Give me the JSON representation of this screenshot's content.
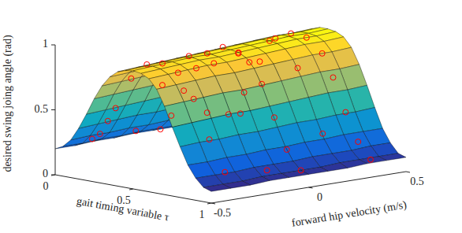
{
  "chart_data": {
    "type": "surface",
    "xlabel": "gait timing variable τ",
    "ylabel": "forward hip velocity (m/s)",
    "zlabel": "desired swing joing angle (rad)",
    "xlim": [
      0,
      1
    ],
    "ylim": [
      -0.5,
      0.5
    ],
    "zlim": [
      0,
      1
    ],
    "xticks": [
      0,
      0.5,
      1
    ],
    "yticks": [
      -0.5,
      0,
      0.5
    ],
    "zticks": [
      0,
      0.5,
      1
    ],
    "grid": false,
    "surface": {
      "x": [
        0,
        0.05,
        0.1,
        0.15,
        0.2,
        0.25,
        0.3,
        0.35,
        0.4,
        0.45,
        0.5,
        0.55,
        0.6,
        0.65,
        0.7,
        0.75,
        0.8,
        0.85,
        0.9,
        0.95,
        1
      ],
      "y": [
        -0.5,
        -0.4,
        -0.3,
        -0.2,
        -0.1,
        0,
        0.1,
        0.2,
        0.3,
        0.4,
        0.5
      ],
      "z": [
        [
          0.2,
          0.23,
          0.29,
          0.39,
          0.51,
          0.64,
          0.75,
          0.83,
          0.88,
          0.9,
          0.91,
          0.9,
          0.87,
          0.8,
          0.68,
          0.53,
          0.39,
          0.26,
          0.17,
          0.11,
          0.09
        ],
        [
          0.2,
          0.23,
          0.3,
          0.4,
          0.52,
          0.65,
          0.76,
          0.84,
          0.89,
          0.91,
          0.92,
          0.91,
          0.88,
          0.81,
          0.69,
          0.54,
          0.4,
          0.26,
          0.17,
          0.11,
          0.09
        ],
        [
          0.21,
          0.24,
          0.3,
          0.41,
          0.53,
          0.66,
          0.77,
          0.85,
          0.9,
          0.92,
          0.93,
          0.92,
          0.89,
          0.82,
          0.7,
          0.55,
          0.4,
          0.27,
          0.17,
          0.11,
          0.09
        ],
        [
          0.21,
          0.24,
          0.31,
          0.42,
          0.54,
          0.67,
          0.78,
          0.86,
          0.91,
          0.93,
          0.94,
          0.93,
          0.9,
          0.83,
          0.71,
          0.56,
          0.41,
          0.27,
          0.18,
          0.12,
          0.1
        ],
        [
          0.22,
          0.25,
          0.31,
          0.42,
          0.55,
          0.68,
          0.79,
          0.87,
          0.92,
          0.94,
          0.94,
          0.93,
          0.9,
          0.83,
          0.71,
          0.56,
          0.41,
          0.28,
          0.18,
          0.12,
          0.1
        ],
        [
          0.22,
          0.25,
          0.32,
          0.43,
          0.56,
          0.69,
          0.8,
          0.88,
          0.93,
          0.95,
          0.95,
          0.94,
          0.91,
          0.84,
          0.72,
          0.57,
          0.42,
          0.28,
          0.18,
          0.12,
          0.1
        ],
        [
          0.22,
          0.25,
          0.32,
          0.44,
          0.57,
          0.7,
          0.81,
          0.89,
          0.94,
          0.96,
          0.96,
          0.95,
          0.92,
          0.85,
          0.73,
          0.58,
          0.43,
          0.29,
          0.19,
          0.12,
          0.1
        ],
        [
          0.23,
          0.26,
          0.33,
          0.45,
          0.58,
          0.71,
          0.82,
          0.9,
          0.95,
          0.97,
          0.97,
          0.96,
          0.93,
          0.86,
          0.74,
          0.59,
          0.43,
          0.29,
          0.19,
          0.13,
          0.1
        ],
        [
          0.23,
          0.26,
          0.33,
          0.45,
          0.59,
          0.72,
          0.83,
          0.91,
          0.96,
          0.98,
          0.98,
          0.97,
          0.94,
          0.87,
          0.75,
          0.6,
          0.44,
          0.3,
          0.19,
          0.13,
          0.11
        ],
        [
          0.24,
          0.27,
          0.34,
          0.46,
          0.6,
          0.73,
          0.84,
          0.92,
          0.96,
          0.98,
          0.98,
          0.97,
          0.94,
          0.87,
          0.75,
          0.6,
          0.44,
          0.3,
          0.2,
          0.13,
          0.11
        ],
        [
          0.24,
          0.27,
          0.34,
          0.46,
          0.6,
          0.73,
          0.84,
          0.92,
          0.97,
          0.99,
          0.99,
          0.98,
          0.95,
          0.88,
          0.76,
          0.61,
          0.45,
          0.3,
          0.2,
          0.13,
          0.11
        ]
      ]
    },
    "points": {
      "marker": "circle",
      "color": "#ff0000",
      "x": [
        0.05,
        0.1,
        0.15,
        0.2,
        0.3,
        0.4,
        0.5,
        0.6,
        0.7,
        0.8,
        0.9,
        0.05,
        0.12,
        0.2,
        0.28,
        0.35,
        0.45,
        0.55,
        0.62,
        0.7,
        0.78,
        0.86,
        0.95,
        0.05,
        0.15,
        0.25,
        0.35,
        0.45,
        0.55,
        0.65,
        0.72,
        0.8,
        0.88,
        0.96,
        0.08,
        0.25,
        0.42,
        0.58,
        0.75,
        0.92,
        0.1,
        0.3,
        0.5,
        0.68,
        0.84
      ],
      "y": [
        -0.35,
        -0.35,
        -0.35,
        -0.35,
        -0.35,
        -0.35,
        -0.35,
        -0.35,
        -0.35,
        -0.35,
        -0.35,
        0,
        0,
        0,
        0,
        0,
        0,
        0,
        0,
        0,
        0,
        0,
        0,
        0.35,
        0.35,
        0.35,
        0.35,
        0.35,
        0.35,
        0.35,
        0.35,
        0.35,
        0.35,
        0.35,
        -0.15,
        -0.15,
        -0.15,
        -0.15,
        -0.15,
        -0.15,
        0.2,
        0.2,
        0.2,
        0.2,
        0.2
      ],
      "z": [
        0.25,
        0.3,
        0.41,
        0.52,
        0.77,
        0.9,
        0.93,
        0.88,
        0.7,
        0.41,
        0.18,
        0.24,
        0.36,
        0.57,
        0.76,
        0.89,
        0.96,
        0.94,
        0.88,
        0.73,
        0.49,
        0.26,
        0.12,
        0.27,
        0.46,
        0.72,
        0.92,
        0.98,
        0.97,
        0.87,
        0.7,
        0.45,
        0.24,
        0.12,
        0.27,
        0.66,
        0.92,
        0.9,
        0.55,
        0.15,
        0.33,
        0.83,
        0.97,
        0.8,
        0.33
      ]
    }
  }
}
